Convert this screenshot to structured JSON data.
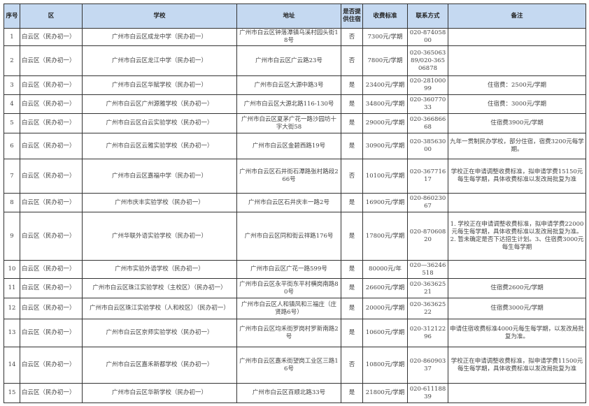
{
  "headers": [
    "序号",
    "区",
    "学校",
    "地址",
    "是否提供住宿",
    "收费标准",
    "联系方式",
    "备注"
  ],
  "rows": [
    {
      "no": "1",
      "district": "白云区（民办初一）",
      "school": "广州市白云区成龙中学（民办初一）",
      "address": "广州市白云区钟落潭镇乌溪村园头街18号",
      "boarding": "否",
      "fee": "7300元/学期",
      "contact": "020-87405800",
      "note": ""
    },
    {
      "no": "2",
      "district": "白云区（民办初一）",
      "school": "广州市白云区龙江中学（民办初一）",
      "address": "广州市白云区广云路23号",
      "boarding": "否",
      "fee": "7800元/学期",
      "contact": "020-36506389/020-36506878",
      "note": ""
    },
    {
      "no": "3",
      "district": "白云区（民办初一）",
      "school": "广州市白云区华赋学校（民办初一）",
      "address": "广州市白云区大源中路3号",
      "boarding": "是",
      "fee": "23400元/学期",
      "contact": "020-28100099",
      "note": "住宿费：2500元/学期"
    },
    {
      "no": "4",
      "district": "白云区（民办初一）",
      "school": "广州市白云区广州源雅学校（民办初一）",
      "address": "广州市白云区大源北路116-130号",
      "boarding": "是",
      "fee": "34800元/学期",
      "contact": "020-36077033",
      "note": "住宿费：3000元/学期"
    },
    {
      "no": "5",
      "district": "白云区（民办初一）",
      "school": "广州市白云区白云实验学校（民办初一）",
      "address": "广州市白云区夏茅广花一路沙园坊十字大街58",
      "boarding": "是",
      "fee": "29000元/学期",
      "contact": "020-36686668",
      "note": "住宿费3900元/学期"
    },
    {
      "no": "6",
      "district": "白云区（民办初一）",
      "school": "广州市白云区云雅实验学校（民办初一）",
      "address": "广州市白云区金碧西路19号",
      "boarding": "是",
      "fee": "30900元/学期",
      "contact": "020-38563000",
      "note": "九年一贯制民办学校，部分住宿，宿费3200元每学期。"
    },
    {
      "no": "7",
      "district": "白云区（民办初一）",
      "school": "广州市白云区嘉福中学（民办初一）",
      "address": "广州市白云区石井街石潭路张村路段266号",
      "boarding": "否",
      "fee": "10100元/学期",
      "contact": "020-36771617",
      "note": "学校正在申请调整收费标准，拟申请学费15150元每生每学期，具体收费标准以发改局批复为准"
    },
    {
      "no": "8",
      "district": "白云区（民办初一）",
      "school": "广州市庆丰实验学校（民办初一）",
      "address": "广州市白云区石井庆丰一路2号",
      "boarding": "是",
      "fee": "16900元/学期",
      "contact": "020-86023067",
      "note": ""
    },
    {
      "no": "9",
      "district": "白云区（民办初一）",
      "school": "广州华联外语实验学校（民办初一）",
      "address": "广州市白云区同和街云祥路176号",
      "boarding": "是",
      "fee": "17800元/学期",
      "contact": "020-87060820",
      "note": "1. 学校正在申请调整收费标准，拟申请学费22000元每生每学期，具体收费标准以发改局批复为准。2. 暂未确定是否下达招生计划。3、住宿费3000元每生每学期"
    },
    {
      "no": "10",
      "district": "白云区（民办初一）",
      "school": "广州市实验外语学校（民办初一）",
      "address": "广州市白云区广花一路599号",
      "boarding": "是",
      "fee": "80000元/年",
      "contact": "020—36246518",
      "note": ""
    },
    {
      "no": "11",
      "district": "白云区（民办初一）",
      "school": "广州市白云区珠江实验学校（主校区）（民办初一）",
      "address": "广州市白云区永平街东平村横岗南路80号",
      "boarding": "是",
      "fee": "26600元/学期",
      "contact": "020-36362521",
      "note": "住宿费2600元/学期"
    },
    {
      "no": "12",
      "district": "白云区（民办初一）",
      "school": "广州市白云区珠江实验学校（人和校区）（民办初一）",
      "address": "广州市白云区人和镇凤和三福庄（庄贤路6号）",
      "boarding": "是",
      "fee": "20000元/学期",
      "contact": "020-36362522",
      "note": "住宿费3000元/学期"
    },
    {
      "no": "13",
      "district": "白云区（民办初一）",
      "school": "广州市白云区京师实验学校（民办初一）",
      "address": "广州市白云区均禾街罗岗村罗新南路2号",
      "boarding": "是",
      "fee": "10600元/学期",
      "contact": "020-31212296",
      "note": "申请住宿收费标准4000元每生每学期，以发改局批复为准。"
    },
    {
      "no": "14",
      "district": "白云区（民办初一）",
      "school": "广州市白云区嘉禾新都学校（民办初一）",
      "address": "广州市白云区嘉禾街望岗工业区三路16号",
      "boarding": "否",
      "fee": "10800元/学期",
      "contact": "020-86090337",
      "note": "学校正在申请调整收费标准，拟申请学费11500元每生每学期，具体收费标准以发改局批复为准"
    },
    {
      "no": "15",
      "district": "白云区（民办初一）",
      "school": "广州市白云区华新学校（民办初一）",
      "address": "广州市白云区百顺北路33号",
      "boarding": "是",
      "fee": "21800元/学期",
      "contact": "020-61118839",
      "note": ""
    }
  ],
  "colors": {
    "header_bg": "#c5d9f1",
    "border": "#333333"
  }
}
